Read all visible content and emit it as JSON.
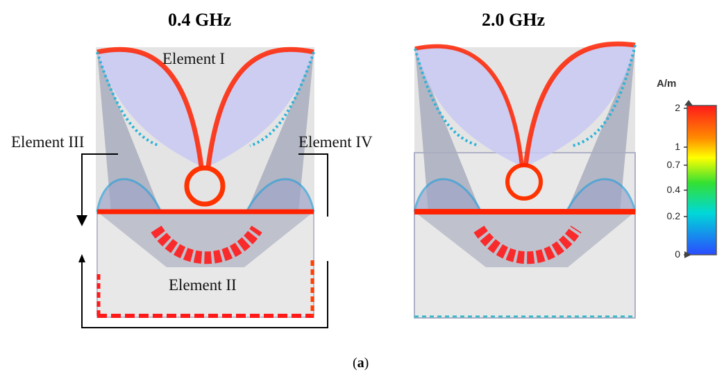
{
  "panels": [
    {
      "frequency_label": "0.4 GHz"
    },
    {
      "frequency_label": "2.0 GHz"
    }
  ],
  "element_labels": {
    "element_1": "Element I",
    "element_2": "Element II",
    "element_3": "Element III",
    "element_4": "Element IV"
  },
  "colorbar": {
    "unit": "A/m",
    "ticks": [
      "2",
      "1",
      "0.7",
      "0.4",
      "0.2",
      "0"
    ],
    "tick_values": [
      2,
      1,
      0.7,
      0.4,
      0.2,
      0
    ],
    "colors": [
      "#ff1a1a",
      "#ff8c00",
      "#ffff00",
      "#33e033",
      "#00d8d8",
      "#2a4bff"
    ]
  },
  "caption": {
    "open": "(",
    "bold": "a",
    "close": ")"
  }
}
